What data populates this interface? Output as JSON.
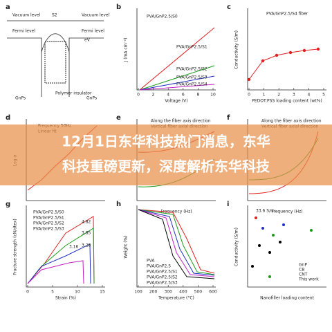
{
  "banner": {
    "lines": [
      "12月1日东华科技热门消息，东华",
      "科技重磅更新，深度解析东华科技"
    ]
  },
  "panels": [
    {
      "letter": "a",
      "texts": [
        "Vacuum level",
        "Fermi level",
        "Vacuum level",
        "Fermi level",
        "eV",
        "S2",
        "GnPs",
        "Polymer insulator",
        "GnPs"
      ]
    },
    {
      "letter": "b",
      "xlabel": "Voltage (V)",
      "ylabel": "J (mA cm⁻²)",
      "texts": [
        "PVA/GnP2.5/S0",
        "PVA/GnP2.5/S1",
        "PVA/GnP2.5/S2",
        "PVA/GnP2.5/S3",
        "PVA/GnP2.5/S4"
      ],
      "xticks": [
        "0",
        "2",
        "4",
        "6",
        "8",
        "10"
      ]
    },
    {
      "letter": "c",
      "xlabel": "PEDOT:PSS loading content (wt%)",
      "ylabel": "Conductivity (S/m)",
      "texts": [
        "PVA/GnP2.5/S4 fiber"
      ],
      "xticks": [
        "0",
        "1",
        "2",
        "3",
        "4",
        "5"
      ]
    },
    {
      "letter": "d",
      "ylabel": "Log σ",
      "texts": [
        "Frequency 50Hz",
        "Linear fit"
      ]
    },
    {
      "letter": "e",
      "xlabel": "Frequency (Hz)",
      "texts": [
        "Along the fiber axis direction",
        "Vertical fiber axial direction"
      ]
    },
    {
      "letter": "f",
      "xlabel": "Frequency (Hz)",
      "texts": [
        "Along the fiber axis direction",
        "Vertical fiber axial direction"
      ]
    },
    {
      "letter": "g",
      "xlabel": "Strain (%)",
      "ylabel": "Fracture strength (cN/dtex)",
      "texts": [
        "PVA/GnP2.5/S0",
        "PVA/GnP2.5/S1",
        "PVA/GnP2.5/S2",
        "PVA/GnP2.5/S3",
        "4.82",
        "3.85",
        "3.28",
        "3.16"
      ],
      "xticks": [
        "0",
        "5",
        "10",
        "15"
      ]
    },
    {
      "letter": "h",
      "xlabel": "Temperature (°C)",
      "ylabel": "Weight (%)",
      "texts": [
        "PVA",
        "PVA/GnP2.5",
        "PVA/GnP2.5/S1",
        "PVA/GnP2.5/S2",
        "PVA/GnP2.5/S3"
      ],
      "xticks": [
        "100",
        "200",
        "300",
        "400",
        "500",
        "600"
      ]
    },
    {
      "letter": "i",
      "xlabel": "Nanofiller loading content",
      "ylabel": "Conductivity (S/m)",
      "texts": [
        "33.6 S/m",
        "GnP",
        "CB",
        "CNT",
        "This work"
      ]
    }
  ]
}
